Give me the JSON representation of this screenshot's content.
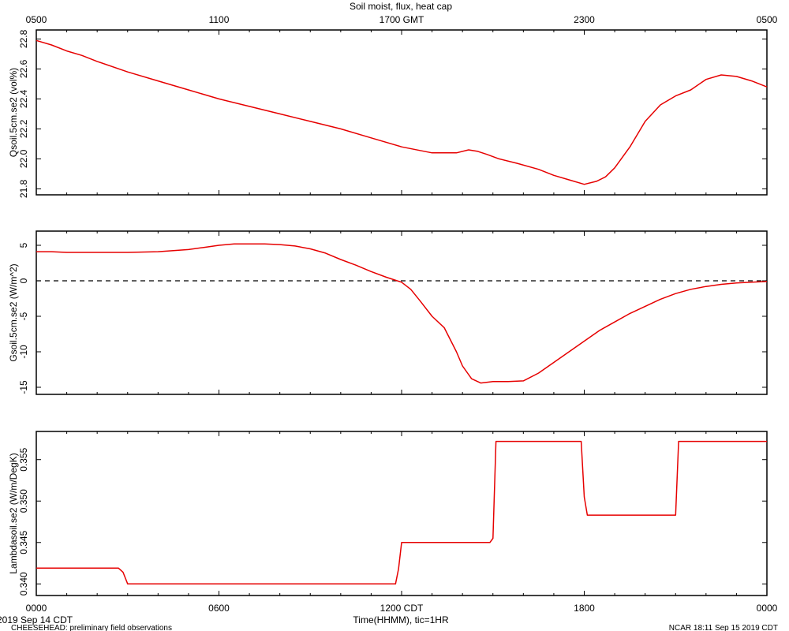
{
  "chart_data": [
    {
      "type": "line",
      "title": "Soil moist, flux, heat cap",
      "ylabel": "Qsoil.5cm.se2 (vol%)",
      "ylim": [
        21.76,
        22.86
      ],
      "yticks": [
        "21.8",
        "22.0",
        "22.2",
        "22.4",
        "22.6",
        "22.8"
      ],
      "top_xticks": [
        "0500",
        "1100",
        "1700 GMT",
        "2300",
        "0500"
      ],
      "series": [
        {
          "color": "#e60000",
          "x": [
            0,
            0.5,
            1,
            1.5,
            2,
            3,
            4,
            5,
            6,
            7,
            8,
            9,
            10,
            11,
            12,
            13,
            13.4,
            13.8,
            14.2,
            14.5,
            14.8,
            15.2,
            15.8,
            16.5,
            17,
            17.5,
            18,
            18.4,
            18.7,
            19,
            19.5,
            20,
            20.5,
            21,
            21.5,
            22,
            22.5,
            23,
            23.5,
            24
          ],
          "y": [
            22.79,
            22.76,
            22.72,
            22.69,
            22.65,
            22.58,
            22.52,
            22.46,
            22.4,
            22.35,
            22.3,
            22.25,
            22.2,
            22.14,
            22.08,
            22.04,
            22.04,
            22.04,
            22.06,
            22.05,
            22.03,
            22.0,
            21.97,
            21.93,
            21.89,
            21.86,
            21.83,
            21.85,
            21.88,
            21.94,
            22.08,
            22.25,
            22.36,
            22.42,
            22.46,
            22.53,
            22.56,
            22.55,
            22.52,
            22.48
          ]
        }
      ]
    },
    {
      "type": "line",
      "ylabel": "Gsoil.5cm.se2 (W/m^2)",
      "ylim": [
        -16.0,
        7.0
      ],
      "yticks": [
        "-15",
        "-10",
        "-5",
        "0",
        "5"
      ],
      "zero_line": "dashed",
      "series": [
        {
          "color": "#e60000",
          "x": [
            0,
            0.5,
            1,
            2,
            3,
            4,
            5,
            5.5,
            6,
            6.5,
            7,
            7.5,
            8,
            8.5,
            9,
            9.5,
            10,
            10.5,
            11,
            11.5,
            12,
            12.3,
            12.6,
            13,
            13.4,
            13.8,
            14,
            14.3,
            14.6,
            15,
            15.5,
            16,
            16.5,
            17,
            17.5,
            18,
            18.5,
            19,
            19.5,
            20,
            20.5,
            21,
            21.5,
            22,
            22.5,
            23,
            23.5,
            24
          ],
          "y": [
            4.1,
            4.1,
            4.0,
            4.0,
            4.0,
            4.1,
            4.4,
            4.7,
            5.0,
            5.2,
            5.2,
            5.2,
            5.1,
            4.9,
            4.5,
            3.9,
            3.0,
            2.2,
            1.3,
            0.5,
            -0.2,
            -1.2,
            -2.8,
            -5.0,
            -6.6,
            -10.0,
            -12.0,
            -13.8,
            -14.4,
            -14.2,
            -14.2,
            -14.1,
            -13.0,
            -11.5,
            -10.0,
            -8.5,
            -7.0,
            -5.8,
            -4.6,
            -3.6,
            -2.6,
            -1.8,
            -1.2,
            -0.8,
            -0.5,
            -0.3,
            -0.2,
            -0.1
          ]
        }
      ]
    },
    {
      "type": "line",
      "ylabel": "Lambdasoil.se2 (W/m/DegK)",
      "ylim": [
        0.3386,
        0.3584
      ],
      "yticks": [
        "0.340",
        "0.345",
        "0.350",
        "0.355"
      ],
      "xlabel": "Time(HHMM), tic=1HR",
      "xticks": [
        "0000",
        "0600",
        "1200 CDT",
        "1800",
        "0000"
      ],
      "series": [
        {
          "color": "#e60000",
          "x": [
            0,
            2.7,
            2.85,
            3.0,
            11.8,
            11.9,
            12.0,
            14.9,
            15.0,
            15.1,
            17.9,
            18.0,
            18.1,
            21.0,
            21.1,
            24
          ],
          "y": [
            0.3419,
            0.3419,
            0.3414,
            0.34,
            0.34,
            0.3418,
            0.345,
            0.345,
            0.3455,
            0.3572,
            0.3572,
            0.3505,
            0.3483,
            0.3483,
            0.3572,
            0.3572
          ]
        }
      ]
    }
  ],
  "footer": {
    "date_label": "2019 Sep 14 CDT",
    "left_note": "CHEESEHEAD: preliminary field observations",
    "right_note": "NCAR 18:11 Sep 15 2019 CDT"
  }
}
